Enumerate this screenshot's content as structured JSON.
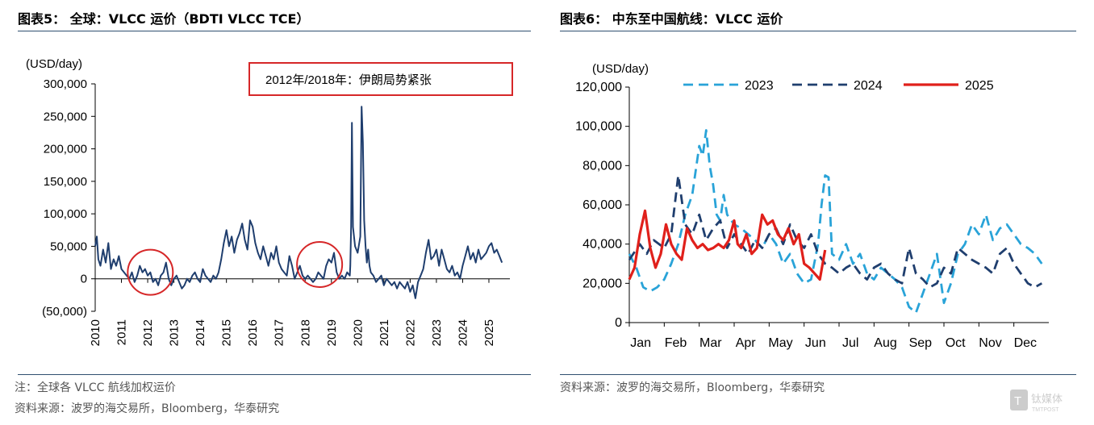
{
  "left_panel": {
    "figure_title": "图表5：  全球：VLCC 运价（BDTI VLCC TCE）",
    "note": "注：全球各 VLCC 航线加权运价",
    "source": "资料来源：波罗的海交易所，Bloomberg，华泰研究"
  },
  "right_panel": {
    "figure_title": "图表6：  中东至中国航线：VLCC 运价",
    "source": "资料来源：波罗的海交易所，Bloomberg，华泰研究"
  },
  "watermark": {
    "label": "钛媒体",
    "sub": "TMTPOST"
  },
  "colors": {
    "left_line": "#1f3e6e",
    "annotation_red": "#d62728",
    "series_2023": "#29a3d8",
    "series_2024": "#1f3e6e",
    "series_2025": "#e0201b",
    "rule": "#2f4f6f"
  },
  "chart_data": [
    {
      "type": "line",
      "ylabel": "(USD/day)",
      "ylim": [
        -50000,
        300000
      ],
      "xlim": [
        2010,
        2025.8
      ],
      "yticks": [
        -50000,
        0,
        50000,
        100000,
        150000,
        200000,
        250000,
        300000
      ],
      "ytick_labels": [
        "(50,000)",
        "0",
        "50,000",
        "100,000",
        "150,000",
        "200,000",
        "250,000",
        "300,000"
      ],
      "xticks": [
        2010,
        2011,
        2012,
        2013,
        2014,
        2015,
        2016,
        2017,
        2018,
        2019,
        2020,
        2021,
        2022,
        2023,
        2024,
        2025
      ],
      "xtick_labels": [
        "2010",
        "2011",
        "2012",
        "2013",
        "2014",
        "2015",
        "2016",
        "2017",
        "2018",
        "2019",
        "2020",
        "2021",
        "2022",
        "2023",
        "2024",
        "2025"
      ],
      "annotation": "2012年/2018年：伊朗局势紧张",
      "highlight_circles": [
        {
          "x": 2012.1,
          "y": 10000,
          "label": "2012"
        },
        {
          "x": 2018.55,
          "y": 22000,
          "label": "2018"
        }
      ],
      "series": [
        {
          "name": "BDTI VLCC TCE",
          "x": [
            2010.0,
            2010.06,
            2010.12,
            2010.2,
            2010.3,
            2010.4,
            2010.5,
            2010.6,
            2010.7,
            2010.8,
            2010.9,
            2011.0,
            2011.1,
            2011.2,
            2011.3,
            2011.4,
            2011.5,
            2011.6,
            2011.7,
            2011.8,
            2011.9,
            2012.0,
            2012.1,
            2012.2,
            2012.3,
            2012.4,
            2012.5,
            2012.6,
            2012.7,
            2012.8,
            2012.9,
            2013.0,
            2013.1,
            2013.2,
            2013.3,
            2013.4,
            2013.5,
            2013.6,
            2013.7,
            2013.8,
            2013.9,
            2014.0,
            2014.1,
            2014.2,
            2014.3,
            2014.4,
            2014.5,
            2014.6,
            2014.7,
            2014.8,
            2014.9,
            2015.0,
            2015.1,
            2015.2,
            2015.3,
            2015.4,
            2015.5,
            2015.6,
            2015.7,
            2015.8,
            2015.9,
            2016.0,
            2016.1,
            2016.2,
            2016.3,
            2016.4,
            2016.5,
            2016.6,
            2016.7,
            2016.8,
            2016.9,
            2017.0,
            2017.1,
            2017.2,
            2017.3,
            2017.4,
            2017.5,
            2017.6,
            2017.7,
            2017.8,
            2017.9,
            2018.0,
            2018.1,
            2018.2,
            2018.3,
            2018.4,
            2018.5,
            2018.6,
            2018.7,
            2018.8,
            2018.9,
            2019.0,
            2019.1,
            2019.2,
            2019.3,
            2019.4,
            2019.5,
            2019.6,
            2019.7,
            2019.72,
            2019.75,
            2019.78,
            2019.82,
            2019.86,
            2019.9,
            2020.0,
            2020.1,
            2020.15,
            2020.2,
            2020.25,
            2020.3,
            2020.35,
            2020.4,
            2020.45,
            2020.5,
            2020.6,
            2020.7,
            2020.8,
            2020.9,
            2021.0,
            2021.1,
            2021.2,
            2021.3,
            2021.4,
            2021.5,
            2021.6,
            2021.7,
            2021.8,
            2021.9,
            2022.0,
            2022.1,
            2022.2,
            2022.3,
            2022.4,
            2022.5,
            2022.6,
            2022.7,
            2022.8,
            2022.9,
            2023.0,
            2023.1,
            2023.2,
            2023.3,
            2023.4,
            2023.5,
            2023.6,
            2023.7,
            2023.8,
            2023.9,
            2024.0,
            2024.1,
            2024.2,
            2024.3,
            2024.4,
            2024.5,
            2024.6,
            2024.7,
            2024.8,
            2024.9,
            2025.0,
            2025.1,
            2025.2,
            2025.3,
            2025.4,
            2025.5
          ],
          "values": [
            50000,
            65000,
            30000,
            20000,
            45000,
            25000,
            55000,
            15000,
            30000,
            20000,
            35000,
            15000,
            10000,
            5000,
            0,
            10000,
            -5000,
            5000,
            20000,
            10000,
            15000,
            5000,
            10000,
            -5000,
            0,
            -10000,
            5000,
            10000,
            25000,
            0,
            -10000,
            0,
            5000,
            -5000,
            -15000,
            -10000,
            0,
            -5000,
            5000,
            10000,
            0,
            -5000,
            15000,
            5000,
            0,
            -5000,
            5000,
            0,
            10000,
            30000,
            55000,
            75000,
            50000,
            65000,
            40000,
            60000,
            70000,
            85000,
            60000,
            45000,
            90000,
            80000,
            55000,
            40000,
            30000,
            50000,
            35000,
            20000,
            40000,
            30000,
            50000,
            25000,
            15000,
            10000,
            5000,
            35000,
            20000,
            0,
            10000,
            20000,
            5000,
            0,
            5000,
            0,
            -5000,
            0,
            10000,
            5000,
            0,
            20000,
            30000,
            25000,
            40000,
            10000,
            0,
            5000,
            0,
            10000,
            5000,
            20000,
            80000,
            240000,
            80000,
            65000,
            50000,
            40000,
            65000,
            265000,
            210000,
            90000,
            50000,
            25000,
            45000,
            20000,
            10000,
            5000,
            -5000,
            0,
            5000,
            -10000,
            0,
            -5000,
            -10000,
            -5000,
            -15000,
            -5000,
            -10000,
            -15000,
            -5000,
            -20000,
            -10000,
            -30000,
            -5000,
            5000,
            15000,
            40000,
            60000,
            30000,
            35000,
            45000,
            20000,
            45000,
            30000,
            15000,
            10000,
            20000,
            5000,
            10000,
            0,
            20000,
            35000,
            50000,
            30000,
            40000,
            25000,
            45000,
            30000,
            35000,
            40000,
            50000,
            55000,
            40000,
            45000,
            35000,
            25000
          ]
        }
      ]
    },
    {
      "type": "line",
      "ylabel": "(USD/day)",
      "ylim": [
        0,
        120000
      ],
      "yticks": [
        0,
        20000,
        40000,
        60000,
        80000,
        100000,
        120000
      ],
      "ytick_labels": [
        "0",
        "20,000",
        "40,000",
        "60,000",
        "80,000",
        "100,000",
        "120,000"
      ],
      "xlim": [
        0,
        12
      ],
      "categories": [
        "Jan",
        "Feb",
        "Mar",
        "Apr",
        "May",
        "Jun",
        "Jul",
        "Aug",
        "Sep",
        "Oct",
        "Nov",
        "Dec"
      ],
      "legend": [
        "2023",
        "2024",
        "2025"
      ],
      "series": [
        {
          "name": "2023",
          "x": [
            0,
            0.2,
            0.4,
            0.6,
            0.8,
            1.0,
            1.2,
            1.4,
            1.6,
            1.8,
            2.0,
            2.1,
            2.2,
            2.3,
            2.4,
            2.5,
            2.6,
            2.7,
            2.8,
            3.0,
            3.2,
            3.4,
            3.6,
            3.8,
            4.0,
            4.2,
            4.4,
            4.6,
            4.8,
            5.0,
            5.2,
            5.4,
            5.5,
            5.6,
            5.7,
            5.8,
            6.0,
            6.2,
            6.4,
            6.6,
            6.8,
            7.0,
            7.2,
            7.4,
            7.6,
            7.8,
            8.0,
            8.2,
            8.4,
            8.6,
            8.8,
            9.0,
            9.2,
            9.4,
            9.6,
            9.8,
            10.0,
            10.2,
            10.4,
            10.6,
            10.8,
            11.0,
            11.2,
            11.4,
            11.6,
            11.8
          ],
          "values": [
            35000,
            28000,
            18000,
            16000,
            18000,
            22000,
            30000,
            40000,
            55000,
            65000,
            90000,
            85000,
            98000,
            80000,
            70000,
            55000,
            52000,
            65000,
            55000,
            50000,
            48000,
            45000,
            42000,
            38000,
            45000,
            40000,
            30000,
            35000,
            25000,
            20000,
            22000,
            40000,
            60000,
            75000,
            74000,
            35000,
            32000,
            40000,
            30000,
            35000,
            25000,
            22000,
            28000,
            25000,
            22000,
            18000,
            8000,
            5000,
            15000,
            25000,
            35000,
            10000,
            20000,
            35000,
            40000,
            50000,
            45000,
            55000,
            42000,
            48000,
            50000,
            45000,
            40000,
            38000,
            35000,
            30000
          ]
        },
        {
          "name": "2024",
          "x": [
            0,
            0.3,
            0.5,
            0.7,
            1.0,
            1.2,
            1.4,
            1.6,
            1.8,
            2.0,
            2.2,
            2.4,
            2.6,
            2.8,
            3.0,
            3.2,
            3.4,
            3.6,
            3.8,
            4.0,
            4.2,
            4.4,
            4.6,
            4.8,
            5.0,
            5.2,
            5.4,
            5.6,
            5.8,
            6.0,
            6.2,
            6.4,
            6.6,
            6.8,
            7.0,
            7.2,
            7.4,
            7.6,
            7.8,
            8.0,
            8.2,
            8.4,
            8.6,
            8.8,
            9.0,
            9.2,
            9.4,
            9.6,
            9.8,
            10.0,
            10.2,
            10.4,
            10.6,
            10.8,
            11.0,
            11.2,
            11.4,
            11.6,
            11.8
          ],
          "values": [
            32000,
            40000,
            35000,
            42000,
            38000,
            45000,
            75000,
            50000,
            45000,
            55000,
            42000,
            48000,
            52000,
            38000,
            45000,
            40000,
            35000,
            42000,
            38000,
            45000,
            48000,
            40000,
            50000,
            42000,
            38000,
            45000,
            35000,
            30000,
            28000,
            25000,
            28000,
            30000,
            25000,
            22000,
            28000,
            30000,
            25000,
            22000,
            20000,
            38000,
            25000,
            22000,
            18000,
            20000,
            28000,
            25000,
            38000,
            35000,
            32000,
            30000,
            28000,
            25000,
            35000,
            38000,
            30000,
            25000,
            20000,
            18000,
            20000
          ]
        },
        {
          "name": "2025",
          "x": [
            0,
            0.15,
            0.3,
            0.45,
            0.6,
            0.75,
            0.9,
            1.05,
            1.2,
            1.35,
            1.5,
            1.65,
            1.8,
            1.95,
            2.1,
            2.25,
            2.4,
            2.55,
            2.7,
            2.85,
            3.0,
            3.1,
            3.2,
            3.35,
            3.5,
            3.65,
            3.8,
            3.95,
            4.1,
            4.25,
            4.4,
            4.55,
            4.7,
            4.85,
            5.0,
            5.15,
            5.3,
            5.45,
            5.6
          ],
          "values": [
            22000,
            28000,
            45000,
            57000,
            38000,
            28000,
            35000,
            50000,
            40000,
            35000,
            32000,
            48000,
            42000,
            38000,
            40000,
            37000,
            38000,
            40000,
            38000,
            42000,
            52000,
            40000,
            38000,
            45000,
            35000,
            38000,
            55000,
            50000,
            52000,
            45000,
            42000,
            48000,
            40000,
            45000,
            30000,
            28000,
            25000,
            22000,
            37000
          ]
        }
      ]
    }
  ]
}
